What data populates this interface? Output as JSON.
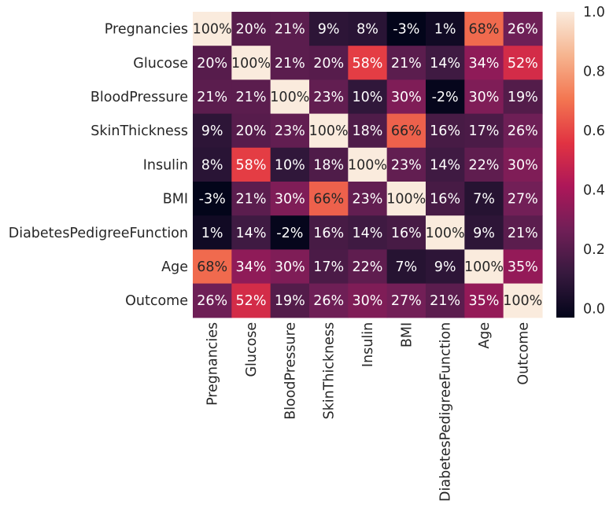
{
  "chart_data": {
    "type": "heatmap",
    "rows": [
      "Pregnancies",
      "Glucose",
      "BloodPressure",
      "SkinThickness",
      "Insulin",
      "BMI",
      "DiabetesPedigreeFunction",
      "Age",
      "Outcome"
    ],
    "columns": [
      "Pregnancies",
      "Glucose",
      "BloodPressure",
      "SkinThickness",
      "Insulin",
      "BMI",
      "DiabetesPedigreeFunction",
      "Age",
      "Outcome"
    ],
    "values": [
      [
        1.0,
        0.2,
        0.21,
        0.09,
        0.08,
        -0.03,
        0.01,
        0.68,
        0.26
      ],
      [
        0.2,
        1.0,
        0.21,
        0.2,
        0.58,
        0.21,
        0.14,
        0.34,
        0.52
      ],
      [
        0.21,
        0.21,
        1.0,
        0.23,
        0.1,
        0.3,
        -0.02,
        0.3,
        0.19
      ],
      [
        0.09,
        0.2,
        0.23,
        1.0,
        0.18,
        0.66,
        0.16,
        0.17,
        0.26
      ],
      [
        0.08,
        0.58,
        0.1,
        0.18,
        1.0,
        0.23,
        0.14,
        0.22,
        0.3
      ],
      [
        -0.03,
        0.21,
        0.3,
        0.66,
        0.23,
        1.0,
        0.16,
        0.07,
        0.27
      ],
      [
        0.01,
        0.14,
        -0.02,
        0.16,
        0.14,
        0.16,
        1.0,
        0.09,
        0.21
      ],
      [
        0.68,
        0.34,
        0.3,
        0.17,
        0.22,
        0.07,
        0.09,
        1.0,
        0.35
      ],
      [
        0.26,
        0.52,
        0.19,
        0.26,
        0.3,
        0.27,
        0.21,
        0.35,
        1.0
      ]
    ],
    "annotations": [
      [
        "100%",
        "20%",
        "21%",
        "9%",
        "8%",
        "-3%",
        "1%",
        "68%",
        "26%"
      ],
      [
        "20%",
        "100%",
        "21%",
        "20%",
        "58%",
        "21%",
        "14%",
        "34%",
        "52%"
      ],
      [
        "21%",
        "21%",
        "100%",
        "23%",
        "10%",
        "30%",
        "-2%",
        "30%",
        "19%"
      ],
      [
        "9%",
        "20%",
        "23%",
        "100%",
        "18%",
        "66%",
        "16%",
        "17%",
        "26%"
      ],
      [
        "8%",
        "58%",
        "10%",
        "18%",
        "100%",
        "23%",
        "14%",
        "22%",
        "30%"
      ],
      [
        "-3%",
        "21%",
        "30%",
        "66%",
        "23%",
        "100%",
        "16%",
        "7%",
        "27%"
      ],
      [
        "1%",
        "14%",
        "-2%",
        "16%",
        "14%",
        "16%",
        "100%",
        "9%",
        "21%"
      ],
      [
        "68%",
        "34%",
        "30%",
        "17%",
        "22%",
        "7%",
        "9%",
        "100%",
        "35%"
      ],
      [
        "26%",
        "52%",
        "19%",
        "26%",
        "30%",
        "27%",
        "21%",
        "35%",
        "100%"
      ]
    ],
    "colorbar": {
      "range": [
        -0.03,
        1.0
      ],
      "ticks": [
        0.0,
        0.2,
        0.4,
        0.6,
        0.8,
        1.0
      ],
      "tick_labels": [
        "0.0",
        "0.2",
        "0.4",
        "0.6",
        "0.8",
        "1.0"
      ]
    },
    "colormap_stops": [
      "#03051a",
      "#36193e",
      "#701f57",
      "#ad1759",
      "#e13342",
      "#f37651",
      "#f6b48f",
      "#faebdd"
    ],
    "title": "",
    "xlabel": "",
    "ylabel": ""
  }
}
